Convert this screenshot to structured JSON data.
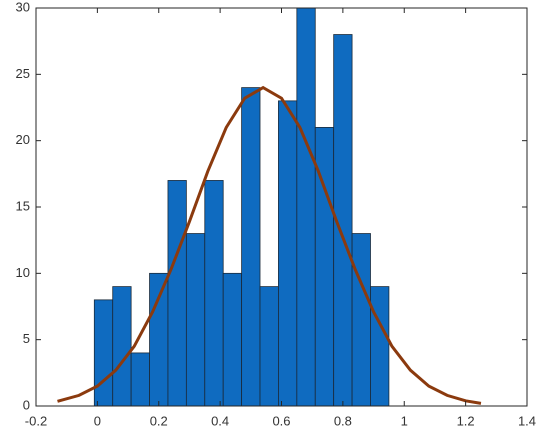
{
  "chart_data": {
    "type": "histogram",
    "bins": [
      -0.01,
      0.05,
      0.11,
      0.17,
      0.23,
      0.29,
      0.35,
      0.41,
      0.47,
      0.53,
      0.59,
      0.65,
      0.71,
      0.77,
      0.83,
      0.89,
      0.95
    ],
    "values": [
      8,
      9,
      4,
      10,
      17,
      13,
      17,
      10,
      24,
      9,
      23,
      30,
      21,
      28,
      13,
      9
    ],
    "color": "#0f6bc0",
    "edge_color": "#1a2a3a",
    "curve": {
      "x": [
        -0.13,
        -0.06,
        0.0,
        0.06,
        0.12,
        0.18,
        0.24,
        0.3,
        0.36,
        0.42,
        0.48,
        0.54,
        0.6,
        0.66,
        0.72,
        0.78,
        0.84,
        0.9,
        0.96,
        1.02,
        1.08,
        1.14,
        1.2,
        1.25
      ],
      "values": [
        0.35,
        0.8,
        1.5,
        2.7,
        4.5,
        7.1,
        10.3,
        13.9,
        17.7,
        21.0,
        23.2,
        24,
        23.2,
        21.0,
        17.7,
        13.9,
        10.3,
        7.1,
        4.5,
        2.7,
        1.5,
        0.8,
        0.39,
        0.2
      ],
      "color": "#8b3a0e"
    },
    "xlim": [
      -0.2,
      1.4
    ],
    "xticks": [
      -0.2,
      0,
      0.2,
      0.4,
      0.6,
      0.8,
      1,
      1.2,
      1.4
    ],
    "ylim": [
      0,
      30
    ],
    "yticks": [
      0,
      5,
      10,
      15,
      20,
      25,
      30
    ],
    "grid": false
  }
}
